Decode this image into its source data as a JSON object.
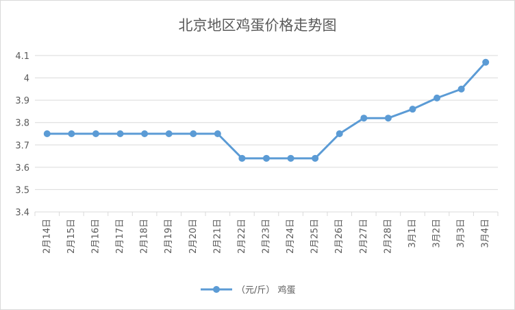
{
  "chart_data": {
    "type": "line",
    "title": "北京地区鸡蛋价格走势图",
    "categories": [
      "2月14日",
      "2月15日",
      "2月16日",
      "2月17日",
      "2月18日",
      "2月19日",
      "2月20日",
      "2月21日",
      "2月22日",
      "2月23日",
      "2月24日",
      "2月25日",
      "2月26日",
      "2月27日",
      "2月28日",
      "3月1日",
      "3月2日",
      "3月3日",
      "3月4日"
    ],
    "series": [
      {
        "name": "（元/斤） 鸡蛋",
        "values": [
          3.75,
          3.75,
          3.75,
          3.75,
          3.75,
          3.75,
          3.75,
          3.75,
          3.64,
          3.64,
          3.64,
          3.64,
          3.75,
          3.82,
          3.82,
          3.86,
          3.91,
          3.95,
          4.07
        ],
        "color": "#5b9bd5"
      }
    ],
    "ylim": [
      3.4,
      4.1
    ],
    "yticks": [
      "3.4",
      "3.5",
      "3.6",
      "3.7",
      "3.8",
      "3.9",
      "4",
      "4.1"
    ],
    "grid": true,
    "legend_position": "bottom"
  }
}
